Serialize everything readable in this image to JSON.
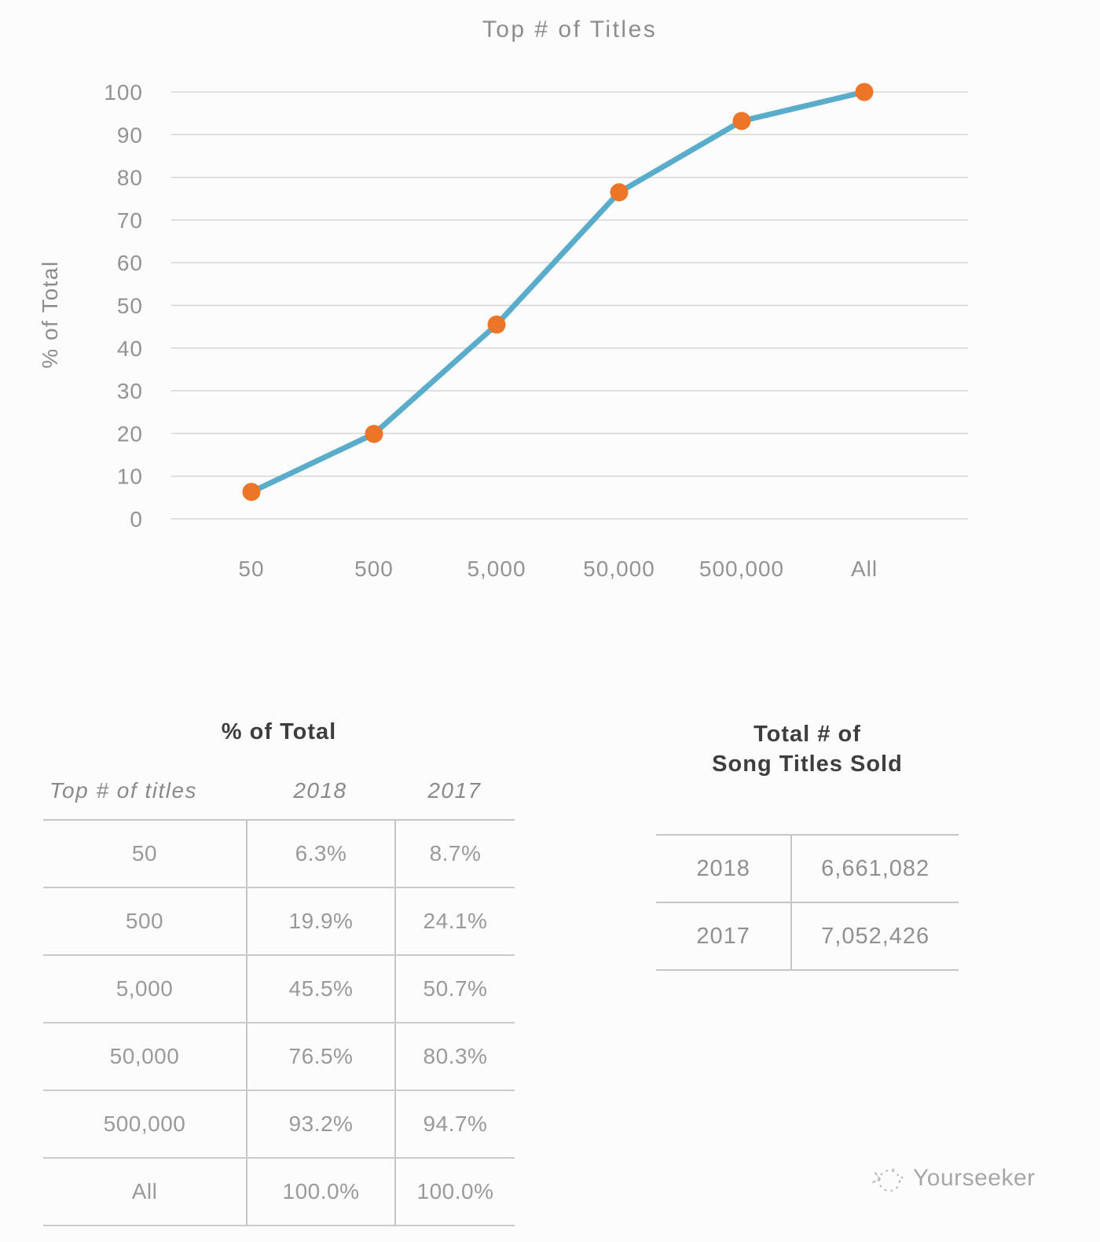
{
  "chart_data": {
    "type": "line",
    "title": "Top # of Titles",
    "xlabel": "",
    "ylabel": "% of Total",
    "categories": [
      "50",
      "500",
      "5,000",
      "50,000",
      "500,000",
      "All"
    ],
    "series": [
      {
        "name": "2018",
        "values": [
          6.3,
          19.9,
          45.5,
          76.5,
          93.2,
          100.0
        ]
      }
    ],
    "ylim": [
      0,
      100
    ],
    "ytick_step": 10,
    "grid": true,
    "legend": "none",
    "line_color": "#5aadca",
    "marker_color": "#ec7528",
    "grid_color": "#d6d6d6",
    "tick_color": "#939393",
    "title_color": "#8d8d8d"
  },
  "tables": {
    "pct_of_total": {
      "title": "% of Total",
      "columns": [
        "Top # of titles",
        "2018",
        "2017"
      ],
      "rows": [
        [
          "50",
          "6.3%",
          "8.7%"
        ],
        [
          "500",
          "19.9%",
          "24.1%"
        ],
        [
          "5,000",
          "45.5%",
          "50.7%"
        ],
        [
          "50,000",
          "76.5%",
          "80.3%"
        ],
        [
          "500,000",
          "93.2%",
          "94.7%"
        ],
        [
          "All",
          "100.0%",
          "100.0%"
        ]
      ]
    },
    "titles_sold": {
      "title_line1": "Total # of",
      "title_line2": "Song Titles Sold",
      "rows": [
        [
          "2018",
          "6,661,082"
        ],
        [
          "2017",
          "7,052,426"
        ]
      ]
    }
  },
  "watermark": {
    "label": "Yourseeker"
  }
}
